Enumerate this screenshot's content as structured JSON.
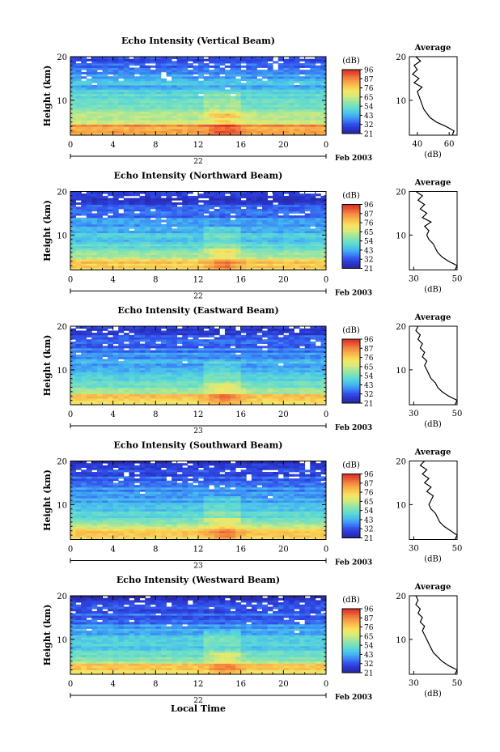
{
  "figure": {
    "x_axis_label": "Local Time",
    "date_label": "Feb 2003",
    "day_labels": [
      "22",
      "22",
      "23",
      "23",
      "22"
    ]
  },
  "chart_data": [
    {
      "type": "heatmap",
      "title": "Echo Intensity (Vertical Beam)",
      "ylabel": "Height (km)",
      "xlabel": "Local Time",
      "x_ticks": [
        "0",
        "4",
        "8",
        "12",
        "16",
        "20",
        "0"
      ],
      "y_ticks": [
        "10",
        "20"
      ],
      "xlim": [
        0,
        24
      ],
      "ylim": [
        2,
        20
      ],
      "colorbar": {
        "unit": "(dB)",
        "ticks": [
          "96",
          "87",
          "76",
          "65",
          "54",
          "43",
          "32",
          "21"
        ]
      },
      "average_profile": {
        "title": "Average",
        "xlabel": "(dB)",
        "x_ticks": [
          "40",
          "60"
        ],
        "xlim": [
          35,
          65
        ],
        "y_ticks": [
          "10",
          "20"
        ],
        "height_km": [
          2,
          3,
          4,
          5,
          6,
          7,
          8,
          9,
          10,
          11,
          12,
          13,
          14,
          15,
          16,
          17,
          18,
          19,
          20
        ],
        "values": [
          62,
          63,
          58,
          52,
          48,
          46,
          44,
          43,
          42,
          41,
          40,
          43,
          38,
          41,
          37,
          40,
          38,
          42,
          39
        ]
      }
    },
    {
      "type": "heatmap",
      "title": "Echo Intensity (Northward Beam)",
      "ylabel": "Height (km)",
      "xlabel": "Local Time",
      "x_ticks": [
        "0",
        "4",
        "8",
        "12",
        "16",
        "20",
        "0"
      ],
      "y_ticks": [
        "10",
        "20"
      ],
      "xlim": [
        0,
        24
      ],
      "ylim": [
        2,
        20
      ],
      "colorbar": {
        "unit": "(dB)",
        "ticks": [
          "96",
          "87",
          "76",
          "65",
          "54",
          "43",
          "32",
          "21"
        ]
      },
      "average_profile": {
        "title": "Average",
        "xlabel": "(dB)",
        "x_ticks": [
          "30",
          "50"
        ],
        "xlim": [
          28,
          50
        ],
        "y_ticks": [
          "10",
          "20"
        ],
        "height_km": [
          2,
          3,
          4,
          5,
          6,
          7,
          8,
          9,
          10,
          11,
          12,
          13,
          14,
          15,
          16,
          17,
          18,
          19,
          20
        ],
        "values": [
          49,
          50,
          46,
          43,
          41,
          40,
          39,
          37,
          36,
          37,
          35,
          38,
          34,
          36,
          33,
          35,
          32,
          34,
          31
        ]
      }
    },
    {
      "type": "heatmap",
      "title": "Echo Intensity (Eastward Beam)",
      "ylabel": "Height (km)",
      "xlabel": "Local Time",
      "x_ticks": [
        "0",
        "4",
        "8",
        "12",
        "16",
        "20",
        "0"
      ],
      "y_ticks": [
        "10",
        "20"
      ],
      "xlim": [
        0,
        24
      ],
      "ylim": [
        2,
        20
      ],
      "colorbar": {
        "unit": "(dB)",
        "ticks": [
          "96",
          "87",
          "76",
          "65",
          "54",
          "43",
          "32",
          "21"
        ]
      },
      "average_profile": {
        "title": "Average",
        "xlabel": "(dB)",
        "x_ticks": [
          "30",
          "50"
        ],
        "xlim": [
          28,
          50
        ],
        "y_ticks": [
          "10",
          "20"
        ],
        "height_km": [
          2,
          3,
          4,
          5,
          6,
          7,
          8,
          9,
          10,
          11,
          12,
          13,
          14,
          15,
          16,
          17,
          18,
          19,
          20
        ],
        "values": [
          49,
          50,
          46,
          43,
          41,
          40,
          38,
          37,
          36,
          35,
          36,
          34,
          35,
          33,
          34,
          32,
          33,
          31,
          32
        ]
      }
    },
    {
      "type": "heatmap",
      "title": "Echo Intensity (Southward Beam)",
      "ylabel": "Height (km)",
      "xlabel": "Local Time",
      "x_ticks": [
        "0",
        "4",
        "8",
        "12",
        "16",
        "20",
        "0"
      ],
      "y_ticks": [
        "10",
        "20"
      ],
      "xlim": [
        0,
        24
      ],
      "ylim": [
        2,
        20
      ],
      "colorbar": {
        "unit": "(dB)",
        "ticks": [
          "96",
          "87",
          "76",
          "65",
          "54",
          "43",
          "32",
          "21"
        ]
      },
      "average_profile": {
        "title": "Average",
        "xlabel": "(dB)",
        "x_ticks": [
          "30",
          "50"
        ],
        "xlim": [
          28,
          50
        ],
        "y_ticks": [
          "10",
          "20"
        ],
        "height_km": [
          2,
          3,
          4,
          5,
          6,
          7,
          8,
          9,
          10,
          11,
          12,
          13,
          14,
          15,
          16,
          17,
          18,
          19,
          20
        ],
        "values": [
          49,
          50,
          47,
          44,
          42,
          41,
          40,
          38,
          37,
          38,
          39,
          36,
          38,
          35,
          37,
          34,
          36,
          33,
          35
        ]
      }
    },
    {
      "type": "heatmap",
      "title": "Echo Intensity (Westward Beam)",
      "ylabel": "Height (km)",
      "xlabel": "Local Time",
      "x_ticks": [
        "0",
        "4",
        "8",
        "12",
        "16",
        "20",
        "0"
      ],
      "y_ticks": [
        "10",
        "20"
      ],
      "xlim": [
        0,
        24
      ],
      "ylim": [
        2,
        20
      ],
      "colorbar": {
        "unit": "(dB)",
        "ticks": [
          "96",
          "87",
          "76",
          "65",
          "54",
          "43",
          "32",
          "21"
        ]
      },
      "average_profile": {
        "title": "Average",
        "xlabel": "(dB)",
        "x_ticks": [
          "30",
          "50"
        ],
        "xlim": [
          28,
          50
        ],
        "y_ticks": [
          "10",
          "20"
        ],
        "height_km": [
          2,
          3,
          4,
          5,
          6,
          7,
          8,
          9,
          10,
          11,
          12,
          13,
          14,
          15,
          16,
          17,
          18,
          19,
          20
        ],
        "values": [
          49,
          50,
          46,
          43,
          41,
          39,
          38,
          37,
          36,
          35,
          34,
          35,
          33,
          34,
          32,
          33,
          31,
          32,
          31
        ]
      }
    }
  ]
}
